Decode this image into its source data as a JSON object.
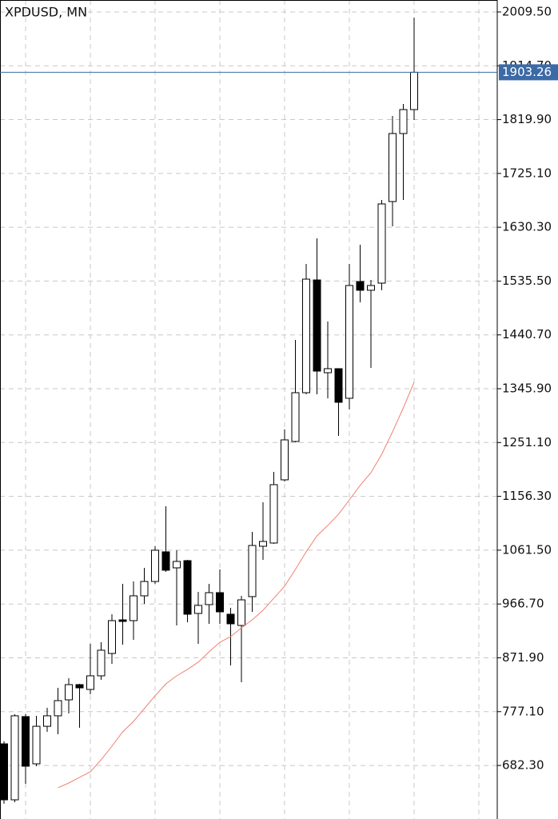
{
  "chart_data": {
    "type": "candlestick",
    "title": "XPDUSD, MN",
    "categories": [
      null,
      null,
      null,
      null,
      null,
      null,
      null,
      null,
      null,
      null,
      null,
      null,
      null,
      null,
      null,
      null,
      null,
      null,
      null,
      null,
      null,
      null,
      null,
      null,
      null,
      null,
      null,
      null,
      null,
      null,
      null,
      null,
      null,
      null,
      null,
      null,
      null,
      null,
      null
    ],
    "open": [
      720.4,
      621.8,
      768.4,
      685.2,
      751.3,
      769.8,
      797.9,
      824.7,
      816.2,
      840.2,
      879.6,
      938.8,
      937.4,
      981.1,
      1006.4,
      1058.6,
      1030.4,
      1043.1,
      950.1,
      965.6,
      986.7,
      948.7,
      928.9,
      979.7,
      1068.4,
      1074.1,
      1185.4,
      1253.0,
      1338.9,
      1537.5,
      1374.1,
      1381.2,
      1329.1,
      1534.7,
      1519.3,
      1531.9,
      1675.6,
      1795.4,
      1837.6
    ],
    "high": [
      725.0,
      772.6,
      772.6,
      769.8,
      783.9,
      819.0,
      835.9,
      826.1,
      896.5,
      899.3,
      948.7,
      1002.2,
      1006.4,
      1030.4,
      1068.4,
      1138.9,
      1061.4,
      1044.5,
      988.1,
      1002.2,
      1027.6,
      959.9,
      981.1,
      1093.8,
      1145.9,
      1199.4,
      1274.2,
      1431.9,
      1565.7,
      1610.8,
      1464.3,
      1381.2,
      1565.7,
      1599.5,
      1537.5,
      1678.4,
      1826.4,
      1847.5,
      1999.6
    ],
    "low": [
      615.0,
      617.6,
      650.0,
      681.0,
      741.6,
      737.4,
      774.0,
      748.7,
      807.8,
      833.2,
      861.3,
      895.1,
      903.6,
      967.0,
      1002.2,
      1023.3,
      928.9,
      934.6,
      896.5,
      931.8,
      931.8,
      858.5,
      828.9,
      952.9,
      1044.5,
      1072.7,
      1182.5,
      1251.6,
      1336.1,
      1336.1,
      1329.1,
      1262.8,
      1309.3,
      1498.1,
      1382.6,
      1519.3,
      1631.9,
      1678.4,
      1819.3
    ],
    "close": [
      621.8,
      769.8,
      681.0,
      751.3,
      769.8,
      796.5,
      824.7,
      819.0,
      840.2,
      885.3,
      937.4,
      936.0,
      981.1,
      1006.4,
      1061.4,
      1026.2,
      1041.7,
      948.7,
      964.2,
      986.7,
      952.9,
      931.8,
      974.0,
      1069.8,
      1076.9,
      1176.9,
      1255.8,
      1338.9,
      1538.9,
      1376.9,
      1381.2,
      1322.0,
      1527.7,
      1519.3,
      1527.7,
      1671.4,
      1795.4,
      1837.6,
      1903.26
    ],
    "up_color": "#ffffff",
    "down_color": "#000000",
    "candle_stroke": "#000000",
    "ma": {
      "color": "#f08070",
      "values": [
        null,
        null,
        null,
        null,
        null,
        643.0,
        651.4,
        661.3,
        671.2,
        692.3,
        716.2,
        741.6,
        759.9,
        782.4,
        805.0,
        826.1,
        840.2,
        851.5,
        864.2,
        882.5,
        899.3,
        909.2,
        924.7,
        938.8,
        955.7,
        976.9,
        998.0,
        1027.6,
        1058.6,
        1086.7,
        1105.1,
        1124.8,
        1150.1,
        1175.5,
        1198.0,
        1230.4,
        1270.0,
        1312.1,
        1357.2
      ]
    },
    "last_price": 1903.26,
    "last_price_color": "#3c6aa6",
    "ylim": [
      588.0,
      2030.6
    ],
    "yticks": [
      {
        "value": 2009.5,
        "label": "2009.50"
      },
      {
        "value": 1914.7,
        "label": "1914.70"
      },
      {
        "value": 1819.9,
        "label": "1819.90"
      },
      {
        "value": 1725.1,
        "label": "1725.10"
      },
      {
        "value": 1630.3,
        "label": "1630.30"
      },
      {
        "value": 1535.5,
        "label": "1535.50"
      },
      {
        "value": 1440.7,
        "label": "1440.70"
      },
      {
        "value": 1345.9,
        "label": "1345.90"
      },
      {
        "value": 1251.1,
        "label": "1251.10"
      },
      {
        "value": 1156.3,
        "label": "1156.30"
      },
      {
        "value": 1061.5,
        "label": "1061.50"
      },
      {
        "value": 966.7,
        "label": "966.70"
      },
      {
        "value": 871.9,
        "label": "871.90"
      },
      {
        "value": 777.1,
        "label": "777.10"
      },
      {
        "value": 682.3,
        "label": "682.30"
      }
    ],
    "grid": true
  }
}
